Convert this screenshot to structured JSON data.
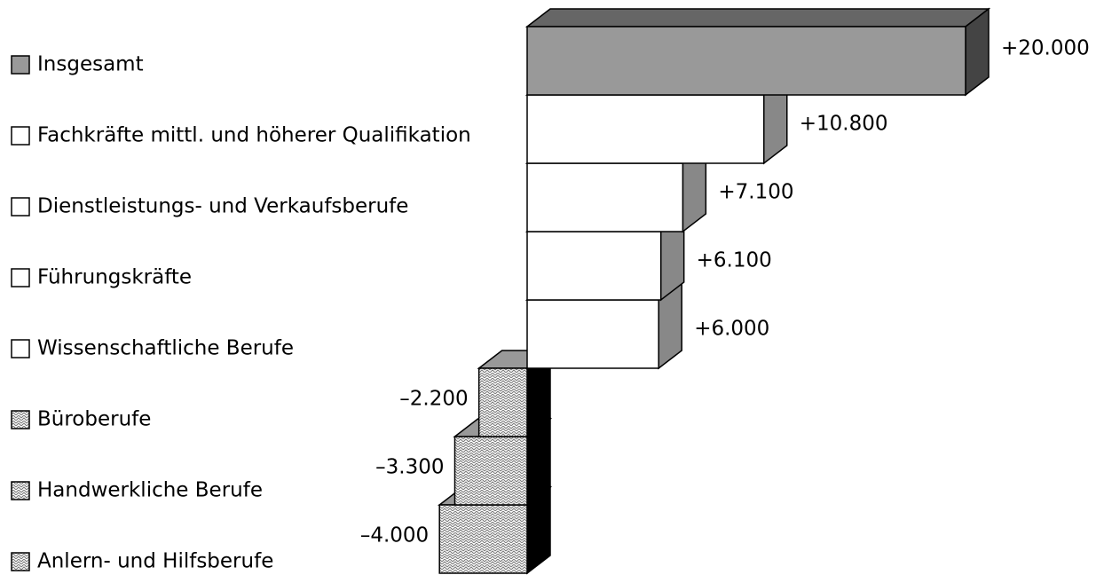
{
  "chart_data": {
    "type": "bar3d",
    "categories": [
      "Insgesamt",
      "Fachkräfte mittl. und höherer Qualifikation",
      "Dienstleistungs- und Verkaufsberufe",
      "Führungskräfte",
      "Wissenschaftliche Berufe",
      "Büroberufe",
      "Handwerkliche Berufe",
      "Anlern- und Hilfsberufe"
    ],
    "values": [
      20000,
      10800,
      7100,
      6100,
      6000,
      -2200,
      -3300,
      -4000
    ],
    "value_labels": [
      "+20.000",
      "+10.800",
      "+7.100",
      "+6.100",
      "+6.000",
      "–2.200",
      "–3.300",
      "–4.000"
    ],
    "colors": [
      "#999999",
      "#ffffff",
      "#ffffff",
      "#ffffff",
      "#ffffff",
      "#d0d0d0",
      "#d0d0d0",
      "#d0d0d0"
    ],
    "styles": [
      "solid",
      "solid",
      "solid",
      "solid",
      "solid",
      "hatched",
      "hatched",
      "hatched"
    ],
    "side_colors": [
      "#444444",
      "#888888",
      "#888888",
      "#888888",
      "#888888",
      "#000000",
      "#000000",
      "#000000"
    ]
  }
}
